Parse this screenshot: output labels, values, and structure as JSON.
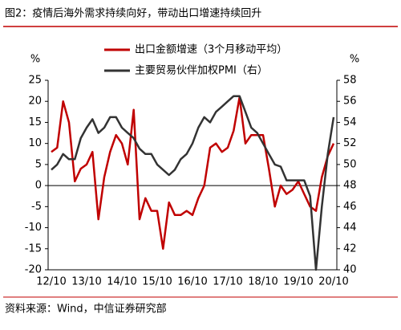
{
  "chart_data": {
    "type": "line",
    "title": "图2：疫情后海外需求持续向好，带动出口增速持续回升",
    "source": "资料来源：Wind，中信证券研究部",
    "y_unit": "%",
    "y2_unit": "%",
    "categories": [
      "12/10",
      null,
      null,
      null,
      null,
      null,
      "13/10",
      null,
      null,
      null,
      null,
      null,
      "14/10",
      null,
      null,
      null,
      null,
      null,
      "15/10",
      null,
      null,
      null,
      null,
      null,
      "16/10",
      null,
      null,
      null,
      null,
      null,
      "17/10",
      null,
      null,
      null,
      null,
      null,
      "18/10",
      null,
      null,
      null,
      null,
      null,
      "19/10",
      null,
      null,
      null,
      null,
      null,
      "20/10"
    ],
    "series": [
      {
        "name": "出口金额增速（3个月移动平均）",
        "color": "#c00000",
        "axis": "y",
        "values": [
          8,
          9,
          20,
          15,
          1,
          4,
          5,
          8,
          -8,
          2,
          8,
          12,
          10,
          5,
          18,
          -8,
          -3,
          -6,
          -6,
          -15,
          -4,
          -7,
          -7,
          -6,
          -7,
          -3,
          0,
          9,
          10,
          8,
          9,
          13,
          21,
          10,
          12,
          12,
          12,
          4,
          -5,
          0,
          -2,
          -1,
          1,
          -2,
          -5,
          -6,
          2,
          7,
          10
        ]
      },
      {
        "name": "主要贸易伙伴加权PMI（右）",
        "color": "#333333",
        "axis": "y2",
        "values": [
          49.5,
          50,
          51,
          50.5,
          50.5,
          52.5,
          53.5,
          54.3,
          53,
          53.5,
          54.5,
          54.5,
          53.5,
          53,
          52.5,
          51.5,
          51,
          51,
          50,
          49.5,
          49,
          49.5,
          50.5,
          51,
          52,
          53.5,
          54.5,
          54,
          55,
          55.5,
          56,
          56.5,
          56.5,
          55,
          53.5,
          53,
          52,
          51,
          50,
          49.8,
          48.5,
          48.5,
          48.5,
          48.5,
          47,
          40,
          46,
          51,
          54.5
        ]
      }
    ],
    "ylim": [
      -20,
      25
    ],
    "yticks": [
      -20,
      -15,
      -10,
      -5,
      0,
      5,
      10,
      15,
      20,
      25
    ],
    "y2lim": [
      40,
      58
    ],
    "y2ticks": [
      40,
      42,
      44,
      46,
      48,
      50,
      52,
      54,
      56,
      58
    ],
    "legend": "top"
  }
}
